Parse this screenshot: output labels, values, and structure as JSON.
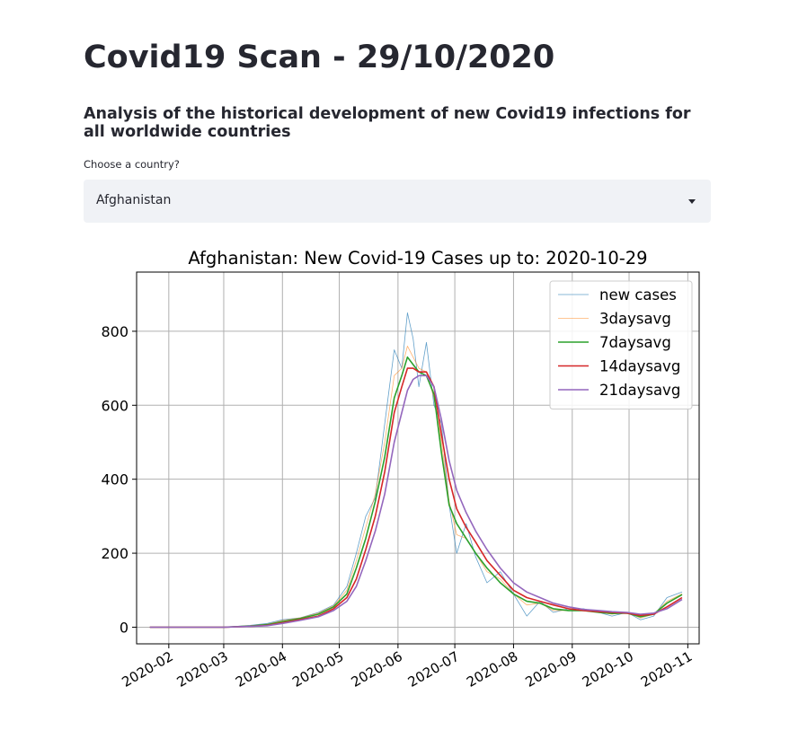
{
  "page": {
    "title": "Covid19 Scan - 29/10/2020",
    "subtitle": "Analysis of the historical development of new Covid19 infections for all worldwide countries",
    "select_label": "Choose a country?",
    "selected_country": "Afghanistan"
  },
  "colors": {
    "new_cases": "#1f77b4",
    "3daysavg": "#ff7f0e",
    "7daysavg": "#2ca02c",
    "14daysavg": "#d62728",
    "21daysavg": "#9467bd"
  },
  "chart_data": {
    "type": "line",
    "title": "Afghanistan: New Covid-19 Cases up to: 2020-10-29",
    "xlabel": "",
    "ylabel": "",
    "grid": true,
    "legend_position": "top-right",
    "xlim": [
      "2020-01-15",
      "2020-11-07"
    ],
    "ylim": [
      -45,
      960
    ],
    "yticks": [
      0,
      200,
      400,
      600,
      800
    ],
    "xticks": [
      "2020-02",
      "2020-03",
      "2020-04",
      "2020-05",
      "2020-06",
      "2020-07",
      "2020-08",
      "2020-09",
      "2020-10",
      "2020-11"
    ],
    "x": [
      "2020-01-22",
      "2020-02-01",
      "2020-02-15",
      "2020-03-01",
      "2020-03-15",
      "2020-03-24",
      "2020-04-01",
      "2020-04-10",
      "2020-04-20",
      "2020-04-28",
      "2020-05-05",
      "2020-05-10",
      "2020-05-15",
      "2020-05-20",
      "2020-05-25",
      "2020-05-30",
      "2020-06-03",
      "2020-06-06",
      "2020-06-09",
      "2020-06-12",
      "2020-06-16",
      "2020-06-20",
      "2020-06-24",
      "2020-06-28",
      "2020-07-02",
      "2020-07-07",
      "2020-07-12",
      "2020-07-18",
      "2020-07-25",
      "2020-08-01",
      "2020-08-08",
      "2020-08-15",
      "2020-08-22",
      "2020-08-30",
      "2020-09-07",
      "2020-09-15",
      "2020-09-22",
      "2020-09-30",
      "2020-10-07",
      "2020-10-14",
      "2020-10-21",
      "2020-10-29"
    ],
    "series": [
      {
        "name": "new cases",
        "values": [
          0,
          0,
          0,
          0,
          5,
          10,
          20,
          25,
          40,
          60,
          110,
          200,
          300,
          350,
          550,
          750,
          700,
          850,
          780,
          650,
          770,
          600,
          550,
          330,
          200,
          280,
          190,
          120,
          150,
          90,
          30,
          70,
          40,
          50,
          50,
          40,
          30,
          40,
          20,
          30,
          80,
          95
        ]
      },
      {
        "name": "3daysavg",
        "values": [
          0,
          0,
          0,
          0,
          4,
          8,
          18,
          25,
          38,
          58,
          100,
          180,
          270,
          360,
          500,
          680,
          700,
          760,
          730,
          700,
          690,
          620,
          500,
          340,
          250,
          240,
          200,
          150,
          130,
          90,
          60,
          65,
          45,
          45,
          45,
          40,
          35,
          40,
          25,
          35,
          70,
          90
        ]
      },
      {
        "name": "7daysavg",
        "values": [
          0,
          0,
          0,
          0,
          3,
          7,
          15,
          23,
          35,
          55,
          90,
          160,
          240,
          340,
          460,
          620,
          680,
          730,
          710,
          690,
          680,
          630,
          470,
          330,
          280,
          240,
          200,
          160,
          120,
          90,
          70,
          65,
          50,
          45,
          45,
          40,
          37,
          38,
          28,
          35,
          65,
          88
        ]
      },
      {
        "name": "14daysavg",
        "values": [
          0,
          0,
          0,
          0,
          2,
          5,
          12,
          20,
          30,
          50,
          80,
          130,
          210,
          300,
          420,
          580,
          650,
          700,
          700,
          690,
          690,
          650,
          520,
          400,
          320,
          270,
          230,
          180,
          140,
          100,
          80,
          70,
          60,
          50,
          45,
          42,
          40,
          38,
          32,
          35,
          55,
          80
        ]
      },
      {
        "name": "21daysavg",
        "values": [
          0,
          0,
          0,
          0,
          2,
          4,
          10,
          18,
          28,
          45,
          70,
          110,
          180,
          260,
          360,
          500,
          580,
          640,
          670,
          680,
          680,
          650,
          560,
          450,
          370,
          310,
          260,
          210,
          160,
          120,
          95,
          80,
          65,
          55,
          48,
          45,
          42,
          40,
          35,
          38,
          50,
          75
        ]
      }
    ]
  }
}
